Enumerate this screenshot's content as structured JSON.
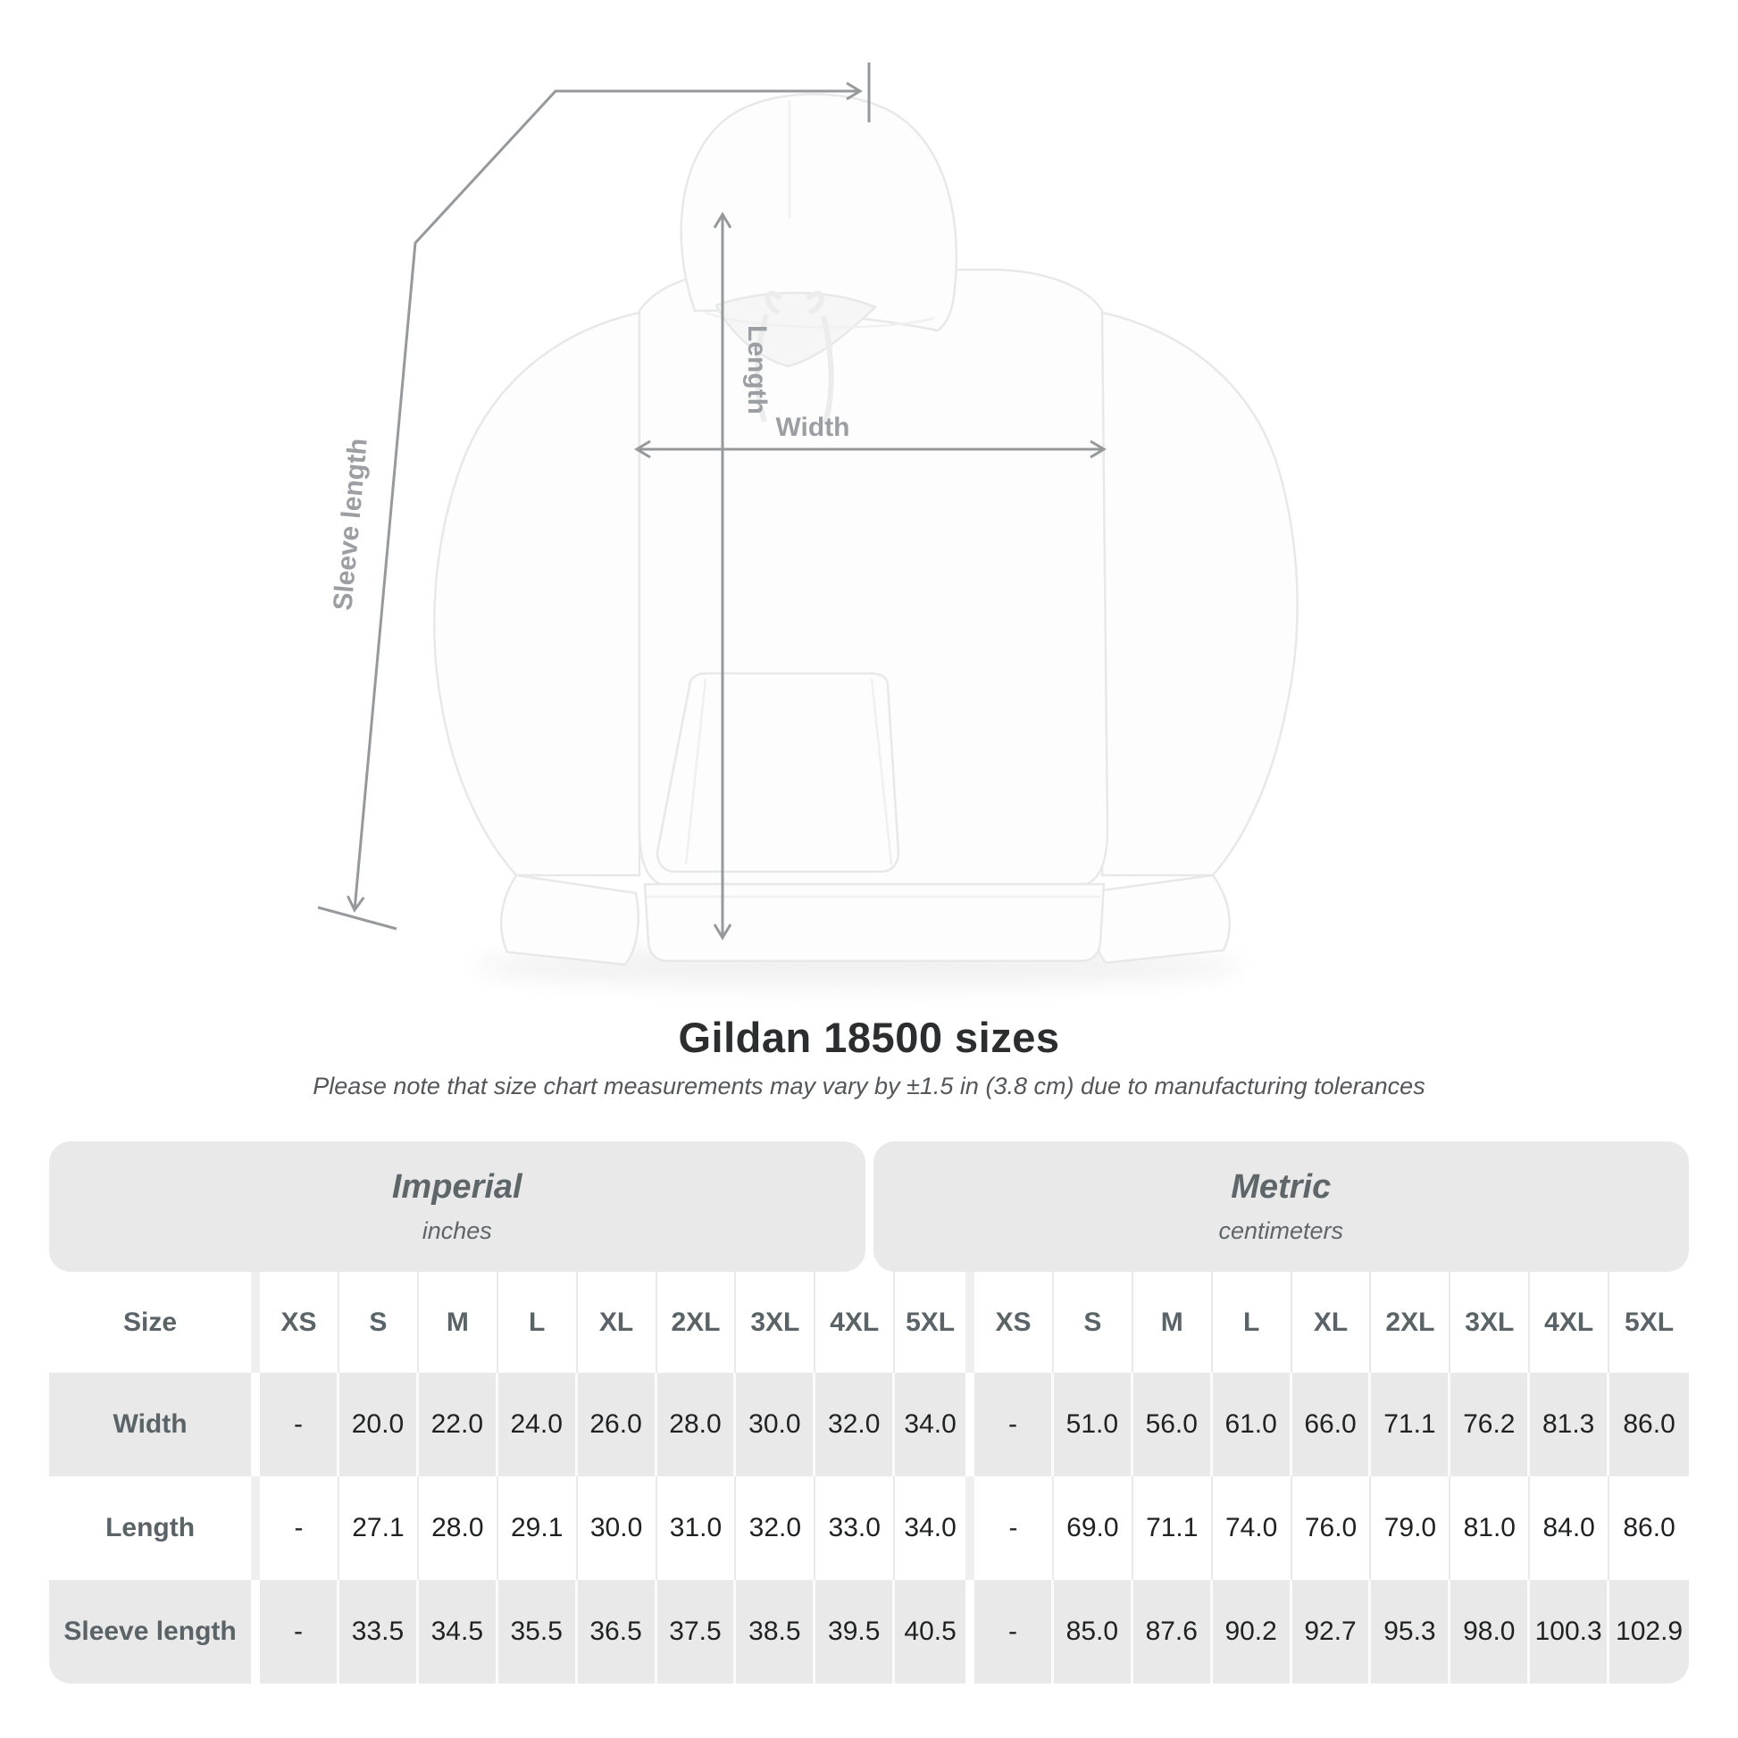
{
  "title": "Gildan 18500 sizes",
  "subtitle": "Please note that size chart measurements may vary by ±1.5 in (3.8 cm) due to manufacturing tolerances",
  "diagram": {
    "labels": {
      "length": "Length",
      "width": "Width",
      "sleeve_length": "Sleeve length"
    }
  },
  "table": {
    "size_header": "Size",
    "unit_groups": [
      {
        "name": "Imperial",
        "unit": "inches"
      },
      {
        "name": "Metric",
        "unit": "centimeters"
      }
    ],
    "sizes": [
      "XS",
      "S",
      "M",
      "L",
      "XL",
      "2XL",
      "3XL",
      "4XL",
      "5XL"
    ],
    "rows": [
      {
        "label": "Width",
        "imperial": [
          "-",
          "20.0",
          "22.0",
          "24.0",
          "26.0",
          "28.0",
          "30.0",
          "32.0",
          "34.0"
        ],
        "metric": [
          "-",
          "51.0",
          "56.0",
          "61.0",
          "66.0",
          "71.1",
          "76.2",
          "81.3",
          "86.0"
        ]
      },
      {
        "label": "Length",
        "imperial": [
          "-",
          "27.1",
          "28.0",
          "29.1",
          "30.0",
          "31.0",
          "32.0",
          "33.0",
          "34.0"
        ],
        "metric": [
          "-",
          "69.0",
          "71.1",
          "74.0",
          "76.0",
          "79.0",
          "81.0",
          "84.0",
          "86.0"
        ]
      },
      {
        "label": "Sleeve length",
        "imperial": [
          "-",
          "33.5",
          "34.5",
          "35.5",
          "36.5",
          "37.5",
          "38.5",
          "39.5",
          "40.5"
        ],
        "metric": [
          "-",
          "85.0",
          "87.6",
          "90.2",
          "92.7",
          "95.3",
          "98.0",
          "100.3",
          "102.9"
        ]
      }
    ]
  },
  "chart_data": {
    "type": "table",
    "title": "Gildan 18500 sizes",
    "note": "Please note that size chart measurements may vary by ±1.5 in (3.8 cm) due to manufacturing tolerances",
    "columns": [
      "Size",
      "XS",
      "S",
      "M",
      "L",
      "XL",
      "2XL",
      "3XL",
      "4XL",
      "5XL"
    ],
    "imperial_inches": {
      "Width": [
        null,
        20.0,
        22.0,
        24.0,
        26.0,
        28.0,
        30.0,
        32.0,
        34.0
      ],
      "Length": [
        null,
        27.1,
        28.0,
        29.1,
        30.0,
        31.0,
        32.0,
        33.0,
        34.0
      ],
      "Sleeve length": [
        null,
        33.5,
        34.5,
        35.5,
        36.5,
        37.5,
        38.5,
        39.5,
        40.5
      ]
    },
    "metric_centimeters": {
      "Width": [
        null,
        51.0,
        56.0,
        61.0,
        66.0,
        71.1,
        76.2,
        81.3,
        86.0
      ],
      "Length": [
        null,
        69.0,
        71.1,
        74.0,
        76.0,
        79.0,
        81.0,
        84.0,
        86.0
      ],
      "Sleeve length": [
        null,
        85.0,
        87.6,
        90.2,
        92.7,
        95.3,
        98.0,
        100.3,
        102.9
      ]
    }
  },
  "colors": {
    "band_bg": "#e9e9e9",
    "stripe_bg": "#e9e9e9",
    "header_text": "#5a6367",
    "value_text": "#1f2122",
    "title_text": "#2b2d2e",
    "subtitle_text": "#54575a",
    "measure_line": "#96999b",
    "measure_label": "#9b9fa3"
  }
}
